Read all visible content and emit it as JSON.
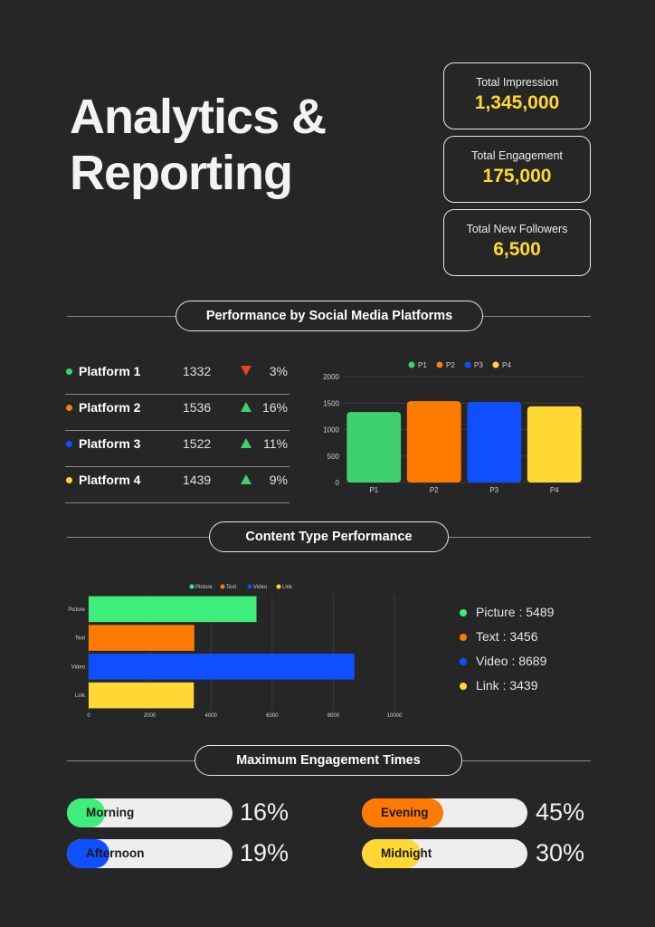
{
  "title": {
    "line1": "Analytics &",
    "line2": "Reporting"
  },
  "stats": [
    {
      "label": "Total Impression",
      "value": "1,345,000"
    },
    {
      "label": "Total Engagement",
      "value": "175,000"
    },
    {
      "label": "Total New Followers",
      "value": "6,500"
    }
  ],
  "sections": {
    "platforms": "Performance by Social Media Platforms",
    "content": "Content Type Performance",
    "times": "Maximum Engagement Times"
  },
  "platforms": [
    {
      "name": "Platform 1",
      "value": "1332",
      "trend": "down",
      "pct": "3%",
      "color": "#3fd06f"
    },
    {
      "name": "Platform 2",
      "value": "1536",
      "trend": "up",
      "pct": "16%",
      "color": "#ff7a00"
    },
    {
      "name": "Platform 3",
      "value": "1522",
      "trend": "up",
      "pct": "11%",
      "color": "#0f4fff"
    },
    {
      "name": "Platform 4",
      "value": "1439",
      "trend": "up",
      "pct": "9%",
      "color": "#ffd833"
    }
  ],
  "content_legend": [
    {
      "text": "Picture : 5489",
      "color": "#3fee7a"
    },
    {
      "text": "Text : 3456",
      "color": "#ff7a00"
    },
    {
      "text": "Video : 8689",
      "color": "#0f4fff"
    },
    {
      "text": "Link : 3439",
      "color": "#ffd833"
    }
  ],
  "engagement": [
    {
      "label": "Morning",
      "pct": "16%",
      "fraction": 0.16,
      "color": "#3fee7a"
    },
    {
      "label": "Evening",
      "pct": "45%",
      "fraction": 0.45,
      "color": "#ff7a00"
    },
    {
      "label": "Afternoon",
      "pct": "19%",
      "fraction": 0.19,
      "color": "#0f4fff"
    },
    {
      "label": "Midnight",
      "pct": "30%",
      "fraction": 0.3,
      "color": "#ffd833"
    }
  ],
  "colors": {
    "up": "#3fd06f",
    "down": "#e8431f",
    "accent": "#ffd833"
  },
  "chart_data": [
    {
      "type": "bar",
      "categories": [
        "P1",
        "P2",
        "P3",
        "P4"
      ],
      "values": [
        1332,
        1536,
        1522,
        1439
      ],
      "legend": [
        "P1",
        "P2",
        "P3",
        "P4"
      ],
      "colors": [
        "#3fd06f",
        "#ff7a00",
        "#0f4fff",
        "#ffd833"
      ],
      "ylim": [
        0,
        2000
      ],
      "yticks": [
        0,
        500,
        1000,
        1500,
        2000
      ],
      "legend_position": "top",
      "grid": true
    },
    {
      "type": "bar",
      "orientation": "horizontal",
      "categories": [
        "Picture",
        "Text",
        "Video",
        "Link"
      ],
      "values": [
        5489,
        3456,
        8689,
        3439
      ],
      "legend": [
        "Picture",
        "Text",
        "Video",
        "Link"
      ],
      "colors": [
        "#3fee7a",
        "#ff7a00",
        "#0f4fff",
        "#ffd833"
      ],
      "xlim": [
        0,
        10000
      ],
      "xticks": [
        0,
        2000,
        4000,
        6000,
        8000,
        10000
      ],
      "legend_position": "top",
      "grid": true
    }
  ]
}
